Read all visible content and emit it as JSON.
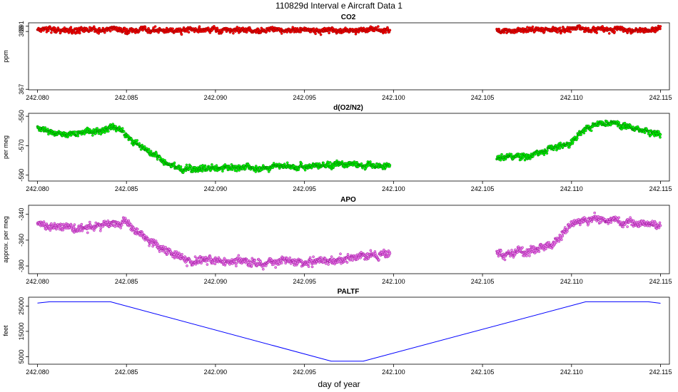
{
  "figure": {
    "title": "110829d   Interval e Aircraft Data 1",
    "xlabel": "day of year",
    "x_ticks": [
      242.08,
      242.085,
      242.09,
      242.095,
      242.1,
      242.105,
      242.11,
      242.115
    ],
    "x_tick_labels": [
      "242.080",
      "242.085",
      "242.090",
      "242.095",
      "242.100",
      "242.105",
      "242.110",
      "242.115"
    ],
    "xlim": [
      242.0795,
      242.1155
    ]
  },
  "chart_data": [
    {
      "type": "scatter",
      "title": "CO2",
      "ylabel": "ppm",
      "ylim": [
        366.8,
        392.3
      ],
      "y_ticks": [
        367,
        389,
        391
      ],
      "y_tick_labels": [
        "367",
        "389",
        "391"
      ],
      "color": "#ff0000",
      "stroke": "#8b0000",
      "segments": [
        {
          "x_start": 242.08,
          "x_end": 242.0998,
          "profile": [
            [
              0,
              389.6
            ],
            [
              0.5,
              389.5
            ],
            [
              1,
              389.5
            ]
          ],
          "noise": 0.75
        },
        {
          "x_start": 242.1058,
          "x_end": 242.115,
          "profile": [
            [
              0,
              389.4
            ],
            [
              0.5,
              389.8
            ],
            [
              1,
              389.9
            ]
          ],
          "noise": 0.7
        }
      ]
    },
    {
      "type": "scatter",
      "title": "d(O2/N2)",
      "ylabel": "per meg",
      "ylim": [
        -594,
        -548
      ],
      "y_ticks": [
        -550,
        -570,
        -590
      ],
      "y_tick_labels": [
        "-550",
        "-570",
        "-590"
      ],
      "color": "#00ff00",
      "stroke": "#006400",
      "segments": [
        {
          "x_start": 242.08,
          "x_end": 242.0998,
          "profile": [
            [
              0,
              -558
            ],
            [
              0.05,
              -562
            ],
            [
              0.18,
              -560
            ],
            [
              0.22,
              -557
            ],
            [
              0.32,
              -575
            ],
            [
              0.38,
              -584
            ],
            [
              0.42,
              -586
            ],
            [
              0.55,
              -585
            ],
            [
              0.7,
              -584
            ],
            [
              0.9,
              -583
            ],
            [
              1,
              -584
            ]
          ],
          "noise": 1.5
        },
        {
          "x_start": 242.1058,
          "x_end": 242.115,
          "profile": [
            [
              0,
              -578
            ],
            [
              0.2,
              -576
            ],
            [
              0.38,
              -570
            ],
            [
              0.45,
              -570
            ],
            [
              0.5,
              -562
            ],
            [
              0.6,
              -555
            ],
            [
              0.7,
              -554
            ],
            [
              1,
              -563
            ]
          ],
          "noise": 1.5
        }
      ]
    },
    {
      "type": "scatter",
      "title": "APO",
      "ylabel": "approx. per meg",
      "ylim": [
        -386,
        -333
      ],
      "y_ticks": [
        -340,
        -360,
        -380
      ],
      "y_tick_labels": [
        "-340",
        "-360",
        "-380"
      ],
      "color": "#ee82ee",
      "stroke": "#8b008b",
      "segments": [
        {
          "x_start": 242.08,
          "x_end": 242.0998,
          "profile": [
            [
              0,
              -348
            ],
            [
              0.15,
              -350
            ],
            [
              0.25,
              -346
            ],
            [
              0.3,
              -356
            ],
            [
              0.35,
              -366
            ],
            [
              0.42,
              -375
            ],
            [
              0.55,
              -377
            ],
            [
              0.7,
              -377
            ],
            [
              0.85,
              -376
            ],
            [
              1,
              -370
            ]
          ],
          "noise": 2.2
        },
        {
          "x_start": 242.1058,
          "x_end": 242.115,
          "profile": [
            [
              0,
              -370
            ],
            [
              0.2,
              -368
            ],
            [
              0.35,
              -362
            ],
            [
              0.4,
              -357
            ],
            [
              0.45,
              -346
            ],
            [
              0.6,
              -343
            ],
            [
              0.75,
              -346
            ],
            [
              1,
              -349
            ]
          ],
          "noise": 2.2
        }
      ]
    },
    {
      "type": "line",
      "title": "PALTF",
      "ylabel": "feet",
      "ylim": [
        2000,
        28500
      ],
      "y_ticks": [
        5000,
        15000,
        25000
      ],
      "y_tick_labels": [
        "5000",
        "15000",
        "25000"
      ],
      "color": "#0000ff",
      "x": [
        242.08,
        242.0807,
        242.0841,
        242.0965,
        242.0983,
        242.1108,
        242.1143,
        242.115
      ],
      "y": [
        26200,
        26700,
        26700,
        3200,
        3200,
        26700,
        26700,
        26100
      ]
    }
  ]
}
